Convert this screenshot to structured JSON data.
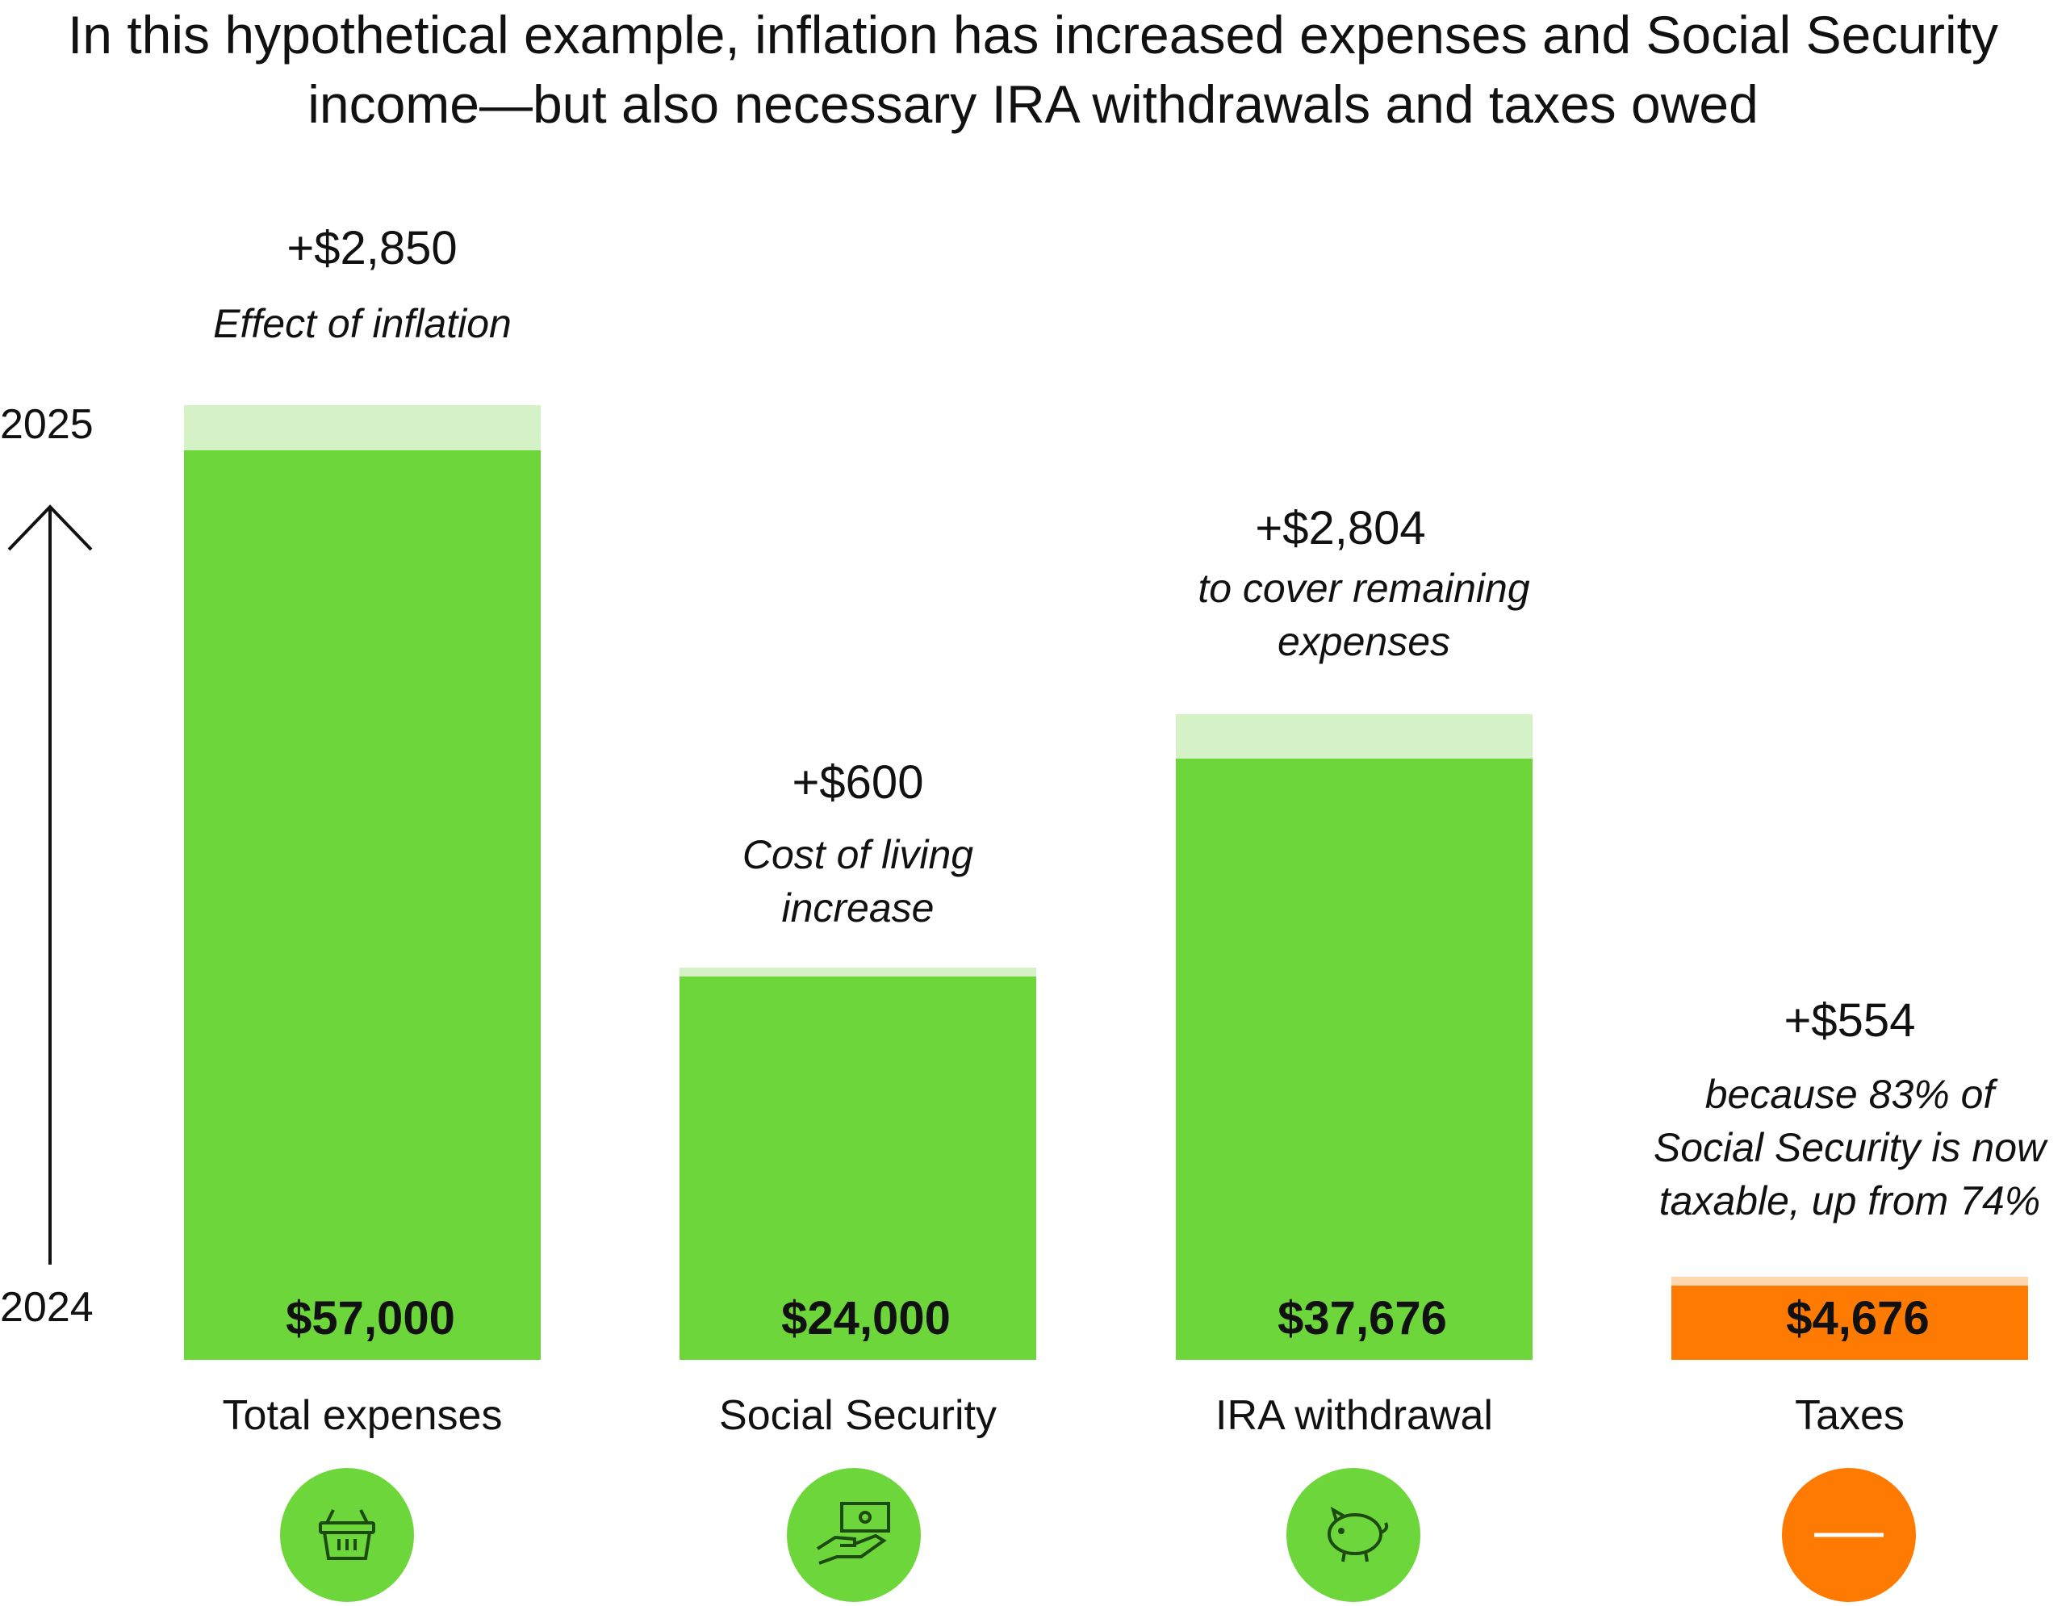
{
  "chart_data": {
    "type": "bar",
    "title": "In this hypothetical example, inflation has increased expenses and Social Security income—but also necessary IRA withdrawals and taxes owed",
    "categories": [
      "Total expenses",
      "Social Security",
      "IRA withdrawal",
      "Taxes"
    ],
    "series": [
      {
        "name": "2024",
        "values": [
          57000,
          24000,
          37676,
          4676
        ]
      },
      {
        "name": "2025",
        "values": [
          59850,
          24600,
          40480,
          5230
        ]
      }
    ],
    "value_labels": [
      "$57,000",
      "$24,000",
      "$37,676",
      "$4,676"
    ],
    "increases": [
      2850,
      600,
      2804,
      554
    ],
    "increase_labels": [
      "+$2,850",
      "+$600",
      "+$2,804",
      "+$554"
    ],
    "notes": [
      [
        "Effect of inflation"
      ],
      [
        "Cost of living",
        "increase"
      ],
      [
        "to cover remaining",
        "expenses"
      ],
      [
        "because 83% of",
        "Social Security is now",
        "taxable, up from 74%"
      ]
    ],
    "year_labels": {
      "start": "2024",
      "end": "2025"
    },
    "colors": [
      "#6CD63A",
      "#6CD63A",
      "#6CD63A",
      "#FF7A00"
    ],
    "increase_colors": [
      "#D5F2C7",
      "#D5F2C7",
      "#D5F2C7",
      "#FFD6B0"
    ],
    "icons": [
      "shopping-basket-icon",
      "cash-in-hand-icon",
      "piggy-bank-icon",
      "minus-icon"
    ],
    "grid": false,
    "legend": "none"
  }
}
